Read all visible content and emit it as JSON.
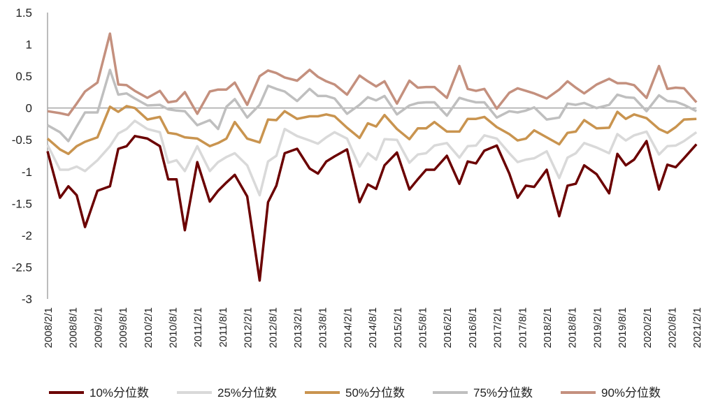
{
  "chart_data": {
    "type": "line",
    "title": "",
    "xlabel": "",
    "ylabel": "",
    "ylim": [
      -3,
      1.5
    ],
    "yticks": [
      1.5,
      1,
      0.5,
      0,
      -0.5,
      -1,
      -1.5,
      -2,
      -2.5,
      -3
    ],
    "ytick_labels": [
      "1.5",
      "1",
      "0.5",
      "0",
      "-0.5",
      "-1",
      "-1.5",
      "-2",
      "-2.5",
      "-3"
    ],
    "xtick_labels": [
      "2008/2/1",
      "2008/8/1",
      "2009/2/1",
      "2009/8/1",
      "2010/2/1",
      "2010/8/1",
      "2011/2/1",
      "2011/8/1",
      "2012/2/1",
      "2012/8/1",
      "2013/2/1",
      "2013/8/1",
      "2014/2/1",
      "2014/8/1",
      "2015/2/1",
      "2015/8/1",
      "2016/2/1",
      "2016/8/1",
      "2017/2/1",
      "2017/8/1",
      "2018/2/1",
      "2018/8/1",
      "2019/2/1",
      "2019/8/1",
      "2020/2/1",
      "2020/8/1",
      "2021/2/1"
    ],
    "x": [
      "2008/2",
      "2008/5",
      "2008/7",
      "2008/9",
      "2008/11",
      "2009/2",
      "2009/5",
      "2009/7",
      "2009/9",
      "2009/11",
      "2010/2",
      "2010/5",
      "2010/7",
      "2010/9",
      "2010/11",
      "2011/2",
      "2011/5",
      "2011/7",
      "2011/9",
      "2011/11",
      "2012/2",
      "2012/5",
      "2012/7",
      "2012/9",
      "2012/11",
      "2013/2",
      "2013/5",
      "2013/7",
      "2013/9",
      "2013/11",
      "2014/2",
      "2014/5",
      "2014/7",
      "2014/9",
      "2014/11",
      "2015/2",
      "2015/5",
      "2015/7",
      "2015/9",
      "2015/11",
      "2016/2",
      "2016/5",
      "2016/7",
      "2016/9",
      "2016/11",
      "2017/2",
      "2017/5",
      "2017/7",
      "2017/9",
      "2017/11",
      "2018/2",
      "2018/5",
      "2018/7",
      "2018/9",
      "2018/11",
      "2019/2",
      "2019/5",
      "2019/7",
      "2019/9",
      "2019/11",
      "2020/2",
      "2020/5",
      "2020/7",
      "2020/9",
      "2020/11",
      "2021/2"
    ],
    "zero_line": true,
    "grid": false,
    "legend_position": "bottom",
    "series": [
      {
        "name": "10%分位数",
        "color": "#6b0000",
        "values": [
          -0.68,
          -1.41,
          -1.23,
          -1.37,
          -1.87,
          -1.3,
          -1.23,
          -0.64,
          -0.6,
          -0.44,
          -0.48,
          -0.6,
          -1.12,
          -1.12,
          -1.92,
          -0.85,
          -1.47,
          -1.3,
          -1.17,
          -1.05,
          -1.39,
          -2.71,
          -1.48,
          -1.22,
          -0.71,
          -0.64,
          -0.95,
          -1.03,
          -0.84,
          -0.76,
          -0.65,
          -1.48,
          -1.2,
          -1.27,
          -0.9,
          -0.7,
          -1.28,
          -1.12,
          -0.97,
          -0.97,
          -0.75,
          -1.19,
          -0.84,
          -0.87,
          -0.67,
          -0.59,
          -1.03,
          -1.41,
          -1.22,
          -1.24,
          -0.97,
          -1.7,
          -1.22,
          -1.19,
          -0.9,
          -1.04,
          -1.34,
          -0.72,
          -0.9,
          -0.81,
          -0.52,
          -1.28,
          -0.89,
          -0.93,
          -0.79,
          -0.57
        ]
      },
      {
        "name": "25%分位数",
        "color": "#d9d9d9",
        "values": [
          -0.58,
          -0.97,
          -0.97,
          -0.92,
          -0.99,
          -0.82,
          -0.6,
          -0.4,
          -0.33,
          -0.2,
          -0.33,
          -0.38,
          -0.86,
          -0.82,
          -0.99,
          -0.6,
          -0.99,
          -0.85,
          -0.77,
          -0.71,
          -0.9,
          -1.37,
          -0.84,
          -0.75,
          -0.33,
          -0.44,
          -0.51,
          -0.56,
          -0.46,
          -0.38,
          -0.48,
          -0.92,
          -0.71,
          -0.81,
          -0.49,
          -0.5,
          -0.86,
          -0.73,
          -0.71,
          -0.59,
          -0.55,
          -0.78,
          -0.6,
          -0.59,
          -0.43,
          -0.48,
          -0.71,
          -0.85,
          -0.81,
          -0.79,
          -0.68,
          -1.1,
          -0.78,
          -0.71,
          -0.55,
          -0.62,
          -0.71,
          -0.41,
          -0.51,
          -0.43,
          -0.37,
          -0.73,
          -0.6,
          -0.59,
          -0.52,
          -0.38
        ]
      },
      {
        "name": "50%分位数",
        "color": "#c9944f",
        "values": [
          -0.48,
          -0.65,
          -0.72,
          -0.6,
          -0.53,
          -0.46,
          0.02,
          -0.06,
          0.03,
          0.0,
          -0.18,
          -0.14,
          -0.39,
          -0.41,
          -0.46,
          -0.48,
          -0.6,
          -0.55,
          -0.48,
          -0.22,
          -0.48,
          -0.54,
          -0.18,
          -0.19,
          -0.05,
          -0.17,
          -0.13,
          -0.13,
          -0.1,
          -0.13,
          -0.31,
          -0.47,
          -0.24,
          -0.29,
          -0.11,
          -0.33,
          -0.49,
          -0.32,
          -0.32,
          -0.22,
          -0.37,
          -0.37,
          -0.17,
          -0.17,
          -0.14,
          -0.3,
          -0.41,
          -0.51,
          -0.48,
          -0.35,
          -0.46,
          -0.57,
          -0.39,
          -0.37,
          -0.19,
          -0.32,
          -0.31,
          -0.06,
          -0.17,
          -0.1,
          -0.16,
          -0.33,
          -0.39,
          -0.3,
          -0.18,
          -0.17
        ]
      },
      {
        "name": "75%分位数",
        "color": "#bfbfbf",
        "values": [
          -0.27,
          -0.38,
          -0.52,
          -0.29,
          -0.07,
          -0.07,
          0.6,
          0.21,
          0.23,
          0.15,
          0.04,
          0.05,
          -0.02,
          -0.04,
          -0.05,
          -0.27,
          -0.19,
          -0.33,
          0.02,
          0.14,
          -0.15,
          0.05,
          0.35,
          0.3,
          0.26,
          0.11,
          0.3,
          0.19,
          0.19,
          0.15,
          -0.09,
          0.05,
          0.17,
          0.12,
          0.19,
          -0.1,
          0.04,
          0.08,
          0.09,
          0.09,
          -0.12,
          0.16,
          0.12,
          0.09,
          0.09,
          -0.15,
          -0.05,
          -0.07,
          -0.04,
          0.01,
          -0.18,
          -0.15,
          0.07,
          0.05,
          0.08,
          0.0,
          0.05,
          0.21,
          0.17,
          0.16,
          -0.05,
          0.2,
          0.11,
          0.1,
          0.05,
          -0.05
        ]
      },
      {
        "name": "90%分位数",
        "color": "#c4907e",
        "values": [
          -0.05,
          -0.08,
          -0.11,
          0.07,
          0.26,
          0.4,
          1.17,
          0.37,
          0.36,
          0.27,
          0.16,
          0.27,
          0.09,
          0.11,
          0.25,
          -0.09,
          0.26,
          0.29,
          0.29,
          0.4,
          0.05,
          0.5,
          0.59,
          0.55,
          0.48,
          0.43,
          0.6,
          0.49,
          0.42,
          0.37,
          0.21,
          0.51,
          0.42,
          0.34,
          0.42,
          0.07,
          0.43,
          0.32,
          0.33,
          0.33,
          0.16,
          0.66,
          0.3,
          0.27,
          0.3,
          -0.01,
          0.24,
          0.31,
          0.27,
          0.23,
          0.15,
          0.29,
          0.42,
          0.32,
          0.23,
          0.37,
          0.46,
          0.39,
          0.39,
          0.36,
          0.16,
          0.66,
          0.3,
          0.32,
          0.31,
          0.09
        ]
      }
    ]
  }
}
